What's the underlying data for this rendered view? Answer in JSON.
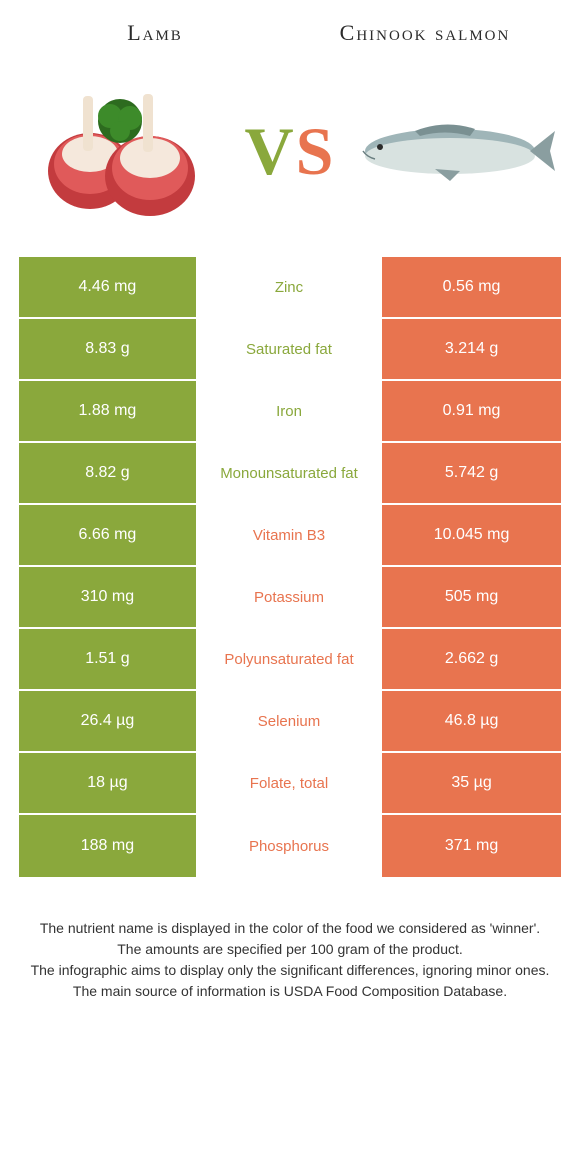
{
  "header": {
    "left_title": "Lamb",
    "right_title": "Chinook salmon"
  },
  "vs": {
    "v": "V",
    "s": "S"
  },
  "colors": {
    "lamb": "#8aa83c",
    "salmon": "#e8744f",
    "background": "#ffffff",
    "text": "#333333"
  },
  "rows": [
    {
      "nutrient": "Zinc",
      "lamb": "4.46 mg",
      "salmon": "0.56 mg",
      "winner": "lamb"
    },
    {
      "nutrient": "Saturated fat",
      "lamb": "8.83 g",
      "salmon": "3.214 g",
      "winner": "lamb"
    },
    {
      "nutrient": "Iron",
      "lamb": "1.88 mg",
      "salmon": "0.91 mg",
      "winner": "lamb"
    },
    {
      "nutrient": "Monounsaturated fat",
      "lamb": "8.82 g",
      "salmon": "5.742 g",
      "winner": "lamb"
    },
    {
      "nutrient": "Vitamin B3",
      "lamb": "6.66 mg",
      "salmon": "10.045 mg",
      "winner": "salmon"
    },
    {
      "nutrient": "Potassium",
      "lamb": "310 mg",
      "salmon": "505 mg",
      "winner": "salmon"
    },
    {
      "nutrient": "Polyunsaturated fat",
      "lamb": "1.51 g",
      "salmon": "2.662 g",
      "winner": "salmon"
    },
    {
      "nutrient": "Selenium",
      "lamb": "26.4 µg",
      "salmon": "46.8 µg",
      "winner": "salmon"
    },
    {
      "nutrient": "Folate, total",
      "lamb": "18 µg",
      "salmon": "35 µg",
      "winner": "salmon"
    },
    {
      "nutrient": "Phosphorus",
      "lamb": "188 mg",
      "salmon": "371 mg",
      "winner": "salmon"
    }
  ],
  "footer": {
    "line1": "The nutrient name is displayed in the color of the food we considered as 'winner'.",
    "line2": "The amounts are specified per 100 gram of the product.",
    "line3": "The infographic aims to display only the significant differences, ignoring minor ones.",
    "line4": "The main source of information is USDA Food Composition Database."
  }
}
